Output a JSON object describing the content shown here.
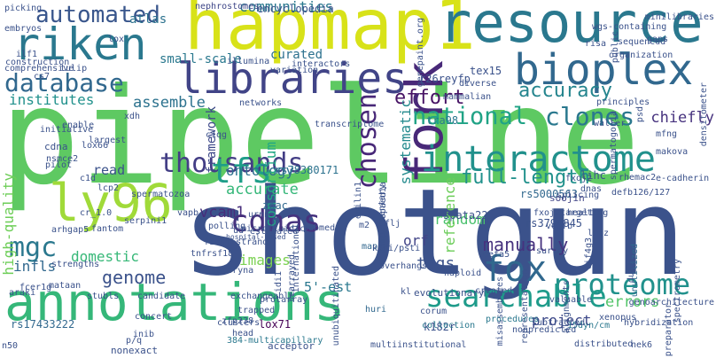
{
  "words": [
    {
      "text": "pipeline",
      "color": "#5ec962"
    },
    {
      "text": "shotgun",
      "color": "#3b528b"
    },
    {
      "text": "hapmap1",
      "color": "#d8e219"
    },
    {
      "text": "resource",
      "color": "#2a788e"
    },
    {
      "text": "annotations",
      "color": "#35b779"
    },
    {
      "text": "bioplex",
      "color": "#31688e"
    },
    {
      "text": "riken",
      "color": "#2a788e"
    },
    {
      "text": "ly96",
      "color": "#a0da39"
    },
    {
      "text": "libraries",
      "color": "#414487"
    },
    {
      "text": "fork",
      "color": "#482878"
    },
    {
      "text": "interactome",
      "color": "#21918c"
    },
    {
      "text": "proteome",
      "color": "#21918c"
    },
    {
      "text": "thousands",
      "color": "#433e85"
    },
    {
      "text": "database",
      "color": "#31688e"
    },
    {
      "text": "automated",
      "color": "#39568c"
    },
    {
      "text": "cdnas",
      "color": "#46327e"
    },
    {
      "text": "clones",
      "color": "#2a788e"
    },
    {
      "text": "tfs",
      "color": "#1f9e89"
    },
    {
      "text": "fox",
      "color": "#31688e"
    },
    {
      "text": "searchable",
      "color": "#1e9b8a"
    },
    {
      "text": "chosen",
      "color": "#482878"
    },
    {
      "text": "mgc",
      "color": "#2a788e"
    },
    {
      "text": "national",
      "color": "#20a386"
    },
    {
      "text": "accuracy",
      "color": "#25858e"
    },
    {
      "text": "communities",
      "color": "#2a788e"
    },
    {
      "text": "small-scale",
      "color": "#2a788e"
    },
    {
      "text": "curated",
      "color": "#2c718e"
    },
    {
      "text": "full-length",
      "color": "#21918c"
    },
    {
      "text": "manually",
      "color": "#46327e"
    },
    {
      "text": "tags",
      "color": "#3b528b"
    },
    {
      "text": "effort",
      "color": "#471365"
    },
    {
      "text": "framework",
      "color": "#3e4989"
    },
    {
      "text": "systematic",
      "color": "#238a8d"
    },
    {
      "text": "random",
      "color": "#4ac16d"
    },
    {
      "text": "genome",
      "color": "#3b528b"
    },
    {
      "text": "domestic",
      "color": "#37b878"
    },
    {
      "text": "images",
      "color": "#7ad151"
    },
    {
      "text": "chiefly",
      "color": "#46327e"
    },
    {
      "text": "reference",
      "color": "#6ccd5a"
    },
    {
      "text": "institutes",
      "color": "#21918c"
    },
    {
      "text": "assemble",
      "color": "#2c728e"
    },
    {
      "text": "ontology",
      "color": "#2d708e"
    },
    {
      "text": "accurate",
      "color": "#35b779"
    },
    {
      "text": "consortium",
      "color": "#22a884"
    },
    {
      "text": "vcam1",
      "color": "#472d7b"
    },
    {
      "text": "orf",
      "color": "#414487"
    },
    {
      "text": "5'-est",
      "color": "#2a788e"
    },
    {
      "text": "project",
      "color": "#3e4989"
    },
    {
      "text": "errors",
      "color": "#52c569"
    },
    {
      "text": "read",
      "color": "#3b528b"
    },
    {
      "text": "high-quality",
      "color": "#6ece58"
    },
    {
      "text": "infls",
      "color": "#31688e"
    },
    {
      "text": "atlas",
      "color": "#2c728e"
    },
    {
      "text": "encyclopedia",
      "color": "#3b528b"
    },
    {
      "text": "nephrostomes",
      "color": "#3f4788"
    },
    {
      "text": "rs78380171",
      "color": "#2c728e"
    },
    {
      "text": "rs3794845",
      "color": "#3b528b"
    },
    {
      "text": "rs5000563",
      "color": "#31688e"
    },
    {
      "text": "rs17433222",
      "color": "#31688e"
    },
    {
      "text": "lox71",
      "color": "#440154"
    },
    {
      "text": "k182r",
      "color": "#3b528b"
    },
    {
      "text": "15dyn/cm",
      "color": "#2a788e"
    },
    {
      "text": "r26reyfp",
      "color": "#3b528b"
    },
    {
      "text": "tex15",
      "color": "#3b528b"
    },
    {
      "text": "tra98",
      "color": "#2a788e"
    },
    {
      "text": "spata22",
      "color": "#3b528b"
    },
    {
      "text": "zpac",
      "color": "#31688e"
    },
    {
      "text": "lihc",
      "color": "#3b528b"
    },
    {
      "text": "soojin",
      "color": "#414487"
    },
    {
      "text": "fxoj2",
      "color": "#3b528b"
    },
    {
      "text": "fxoj2targeting",
      "color": "#3b528b"
    },
    {
      "text": "defb126/127",
      "color": "#3b528b"
    },
    {
      "text": "rhemac2",
      "color": "#3b528b"
    },
    {
      "text": "makova",
      "color": "#3b528b"
    },
    {
      "text": "e-cadherin",
      "color": "#3b528b"
    },
    {
      "text": "unutilized",
      "color": "#31688e"
    },
    {
      "text": "spectrometry",
      "color": "#3b528b"
    },
    {
      "text": "evolutionary",
      "color": "#3b528b"
    },
    {
      "text": "corum",
      "color": "#3b528b"
    },
    {
      "text": "huri",
      "color": "#31688e"
    },
    {
      "text": "collection",
      "color": "#2a788e"
    },
    {
      "text": "map",
      "color": "#31688e"
    },
    {
      "text": "haploid",
      "color": "#3b528b"
    },
    {
      "text": "created",
      "color": "#3b528b"
    },
    {
      "text": "valuable",
      "color": "#3b528b"
    },
    {
      "text": "alignments",
      "color": "#3b528b"
    },
    {
      "text": "representation",
      "color": "#3b528b"
    },
    {
      "text": "misassemblies",
      "color": "#3b528b"
    },
    {
      "text": "subtracted",
      "color": "#3b528b"
    },
    {
      "text": "procedures",
      "color": "#2a788e"
    },
    {
      "text": "hybridization",
      "color": "#3b528b"
    },
    {
      "text": "preparator",
      "color": "#3b528b"
    },
    {
      "text": "distributed",
      "color": "#3b528b"
    },
    {
      "text": "nek6",
      "color": "#3b528b"
    },
    {
      "text": "nonpredicted",
      "color": "#3b528b"
    },
    {
      "text": "xenopus",
      "color": "#3b528b"
    },
    {
      "text": "acceptor",
      "color": "#3b528b"
    },
    {
      "text": "multiinstitutional",
      "color": "#3b528b"
    },
    {
      "text": "nonexact",
      "color": "#3b528b"
    },
    {
      "text": "inib",
      "color": "#3b528b"
    },
    {
      "text": "384-multicapillary",
      "color": "#2a788e"
    },
    {
      "text": "zfp238",
      "color": "#3b528b"
    },
    {
      "text": "head",
      "color": "#3b528b"
    },
    {
      "text": "p/q",
      "color": "#3b528b"
    },
    {
      "text": "n50",
      "color": "#3b528b"
    },
    {
      "text": "initiative",
      "color": "#3b528b"
    },
    {
      "text": "cdna",
      "color": "#3b528b"
    },
    {
      "text": "lox66",
      "color": "#3b528b"
    },
    {
      "text": "largest",
      "color": "#3b528b"
    },
    {
      "text": "xdh",
      "color": "#3b528b"
    },
    {
      "text": "c1qg",
      "color": "#3b528b"
    },
    {
      "text": "nsmce2",
      "color": "#3b528b"
    },
    {
      "text": "pilot",
      "color": "#3b528b"
    },
    {
      "text": "c1d",
      "color": "#3b528b"
    },
    {
      "text": "lcp2",
      "color": "#3b528b"
    },
    {
      "text": "spermatozoa",
      "color": "#3b528b"
    },
    {
      "text": "vapb",
      "color": "#3b528b"
    },
    {
      "text": "polling",
      "color": "#3b528b"
    },
    {
      "text": "arhgap5",
      "color": "#3b528b"
    },
    {
      "text": "fantom",
      "color": "#3b528b"
    },
    {
      "text": "cr_1.0",
      "color": "#3b528b"
    },
    {
      "text": "serpini1",
      "color": "#3b528b"
    },
    {
      "text": "first-strand",
      "color": "#3b528b"
    },
    {
      "text": "tnfrsf18",
      "color": "#3b528b"
    },
    {
      "text": "kateryna",
      "color": "#3b528b"
    },
    {
      "text": "mataan",
      "color": "#3b528b"
    },
    {
      "text": "araki",
      "color": "#3b528b"
    },
    {
      "text": "fcer1g",
      "color": "#3b528b"
    },
    {
      "text": "stubls",
      "color": "#3b528b"
    },
    {
      "text": "candidate",
      "color": "#3b528b"
    },
    {
      "text": "exchangeable",
      "color": "#3b528b"
    },
    {
      "text": "protarray",
      "color": "#3b528b"
    },
    {
      "text": "trapped",
      "color": "#3b528b"
    },
    {
      "text": "idi1",
      "color": "#3b528b"
    },
    {
      "text": "rearrayed",
      "color": "#3b528b"
    },
    {
      "text": "international",
      "color": "#3b528b"
    },
    {
      "text": "unubiquitinated",
      "color": "#3b528b"
    },
    {
      "text": "overhangs",
      "color": "#3b528b"
    },
    {
      "text": "flj",
      "color": "#3b528b"
    },
    {
      "text": "kpni/psti",
      "color": "#3b528b"
    },
    {
      "text": "defa5",
      "color": "#3b528b"
    },
    {
      "text": "health",
      "color": "#3b528b"
    },
    {
      "text": "vegfb",
      "color": "#3b528b"
    },
    {
      "text": "lutz",
      "color": "#3b528b"
    },
    {
      "text": "survey",
      "color": "#3b528b"
    },
    {
      "text": "dnas",
      "color": "#3b528b"
    },
    {
      "text": "splicing",
      "color": "#3b528b"
    },
    {
      "text": "emilin1",
      "color": "#3b528b"
    },
    {
      "text": "complementary",
      "color": "#3b528b"
    },
    {
      "text": "transcriptome",
      "color": "#3b528b"
    },
    {
      "text": "networks",
      "color": "#3b528b"
    },
    {
      "text": "walter",
      "color": "#3b528b"
    },
    {
      "text": "principles",
      "color": "#3b528b"
    },
    {
      "text": "mammalian",
      "color": "#3b528b"
    },
    {
      "text": "diverse",
      "color": "#3b528b"
    },
    {
      "text": "interactors",
      "color": "#3b528b"
    },
    {
      "text": "variation",
      "color": "#3b528b"
    },
    {
      "text": "illumina",
      "color": "#3b528b"
    },
    {
      "text": "tulip",
      "color": "#3b528b"
    },
    {
      "text": "comprehensive",
      "color": "#3b528b"
    },
    {
      "text": "construction",
      "color": "#3b528b"
    },
    {
      "text": "ilf1",
      "color": "#3b528b"
    },
    {
      "text": "embryos",
      "color": "#3b528b"
    },
    {
      "text": "picking",
      "color": "#3b528b"
    },
    {
      "text": "lox",
      "color": "#3b528b"
    },
    {
      "text": "risa",
      "color": "#3b528b"
    },
    {
      "text": "organization",
      "color": "#3b528b"
    },
    {
      "text": "sequenced",
      "color": "#3b528b"
    },
    {
      "text": "gaps",
      "color": "#3b528b"
    },
    {
      "text": "minilibraries",
      "color": "#3b528b"
    },
    {
      "text": "public",
      "color": "#3b528b"
    },
    {
      "text": "wgs-containing",
      "color": "#3b528b"
    },
    {
      "text": "densitometer",
      "color": "#3b528b"
    },
    {
      "text": "enable",
      "color": "#3b528b"
    },
    {
      "text": "hospital-based",
      "color": "#3b528b"
    },
    {
      "text": "concert",
      "color": "#3b528b"
    },
    {
      "text": "strengths",
      "color": "#3b528b"
    },
    {
      "text": "genoarchitecture",
      "color": "#3b528b"
    },
    {
      "text": "dual",
      "color": "#3b528b"
    },
    {
      "text": "eif4g3",
      "color": "#3b528b"
    },
    {
      "text": "genepaint.org",
      "color": "#3b528b"
    },
    {
      "text": "encyclopaedia",
      "color": "#3b528b"
    },
    {
      "text": "clusters",
      "color": "#3b528b"
    },
    {
      "text": "cd",
      "color": "#3b528b"
    },
    {
      "text": "cs7",
      "color": "#3b528b"
    },
    {
      "text": "kl",
      "color": "#3b528b"
    },
    {
      "text": "m2",
      "color": "#3b528b"
    },
    {
      "text": "ud",
      "color": "#3b528b"
    },
    {
      "text": "psd",
      "color": "#3b528b"
    },
    {
      "text": "spermatogonia",
      "color": "#3b528b"
    },
    {
      "text": "microfluidic",
      "color": "#3b528b"
    },
    {
      "text": "pubmed",
      "color": "#3b528b"
    },
    {
      "text": "estimated",
      "color": "#3b528b"
    },
    {
      "text": "urnn",
      "color": "#3b528b"
    },
    {
      "text": "mfng",
      "color": "#3b528b"
    },
    {
      "text": "cs7885",
      "color": "#3b528b"
    }
  ]
}
